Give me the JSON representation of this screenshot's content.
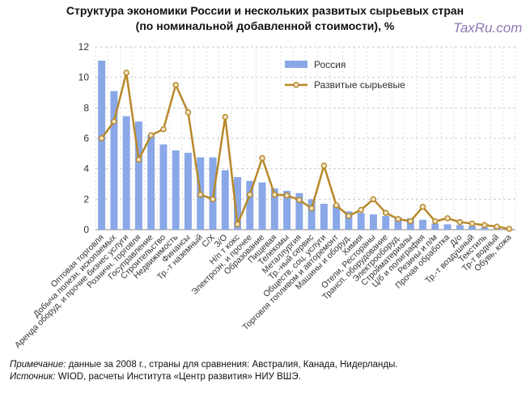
{
  "title_line1": "Структура экономики России и нескольких развитых сырьевых стран",
  "title_line2": "(по номинальной добавленной стоимости),  %",
  "watermark": "TaxRu.com",
  "notes": {
    "note_label": "Примечание:",
    "note_text": " данные за 2008 г., страны для сравнения: Австралия, Канада, Нидерланды.",
    "source_label": "Источник:",
    "source_text": " WIOD, расчеты Института «Центр развития» НИУ ВШЭ."
  },
  "chart_data": {
    "type": "bar+line",
    "title": "Структура экономики России и нескольких развитых сырьевых стран (по номинальной добавленной стоимости),  %",
    "ylim": [
      0,
      12
    ],
    "yticks": [
      0,
      2,
      4,
      6,
      8,
      10,
      12
    ],
    "grid": true,
    "legend_position": "top-center",
    "categories": [
      "Оптовая  торговля",
      "Добыча полезн. ископаемых",
      "Аренда оборуд. и прочие бизнес услуги",
      "Розничн. торговля",
      "Госуправление",
      "Строительство",
      "Недвижимость",
      "Финансы",
      "Тр.-т наземный",
      "С/Х",
      "З/О",
      "Н/п т кокс",
      "Электроэн. и прочее",
      "Образование",
      "Пищевая",
      "Телекомы",
      "Металлургия",
      "Тр.-ный сервис",
      "Обществ. соц. услуги",
      "Торговля топливом и авторемонт",
      "Машины  и оборуд.",
      "Химия",
      "Отели, Рестораны",
      "Трансп. оборудование",
      "Электрооборуд.",
      "Стройматериалы",
      "Ц/б и полиграфия",
      "Резины и п/м",
      "Прочая обработка",
      "Д/о",
      "Тр.-т воздушный",
      "Текстиль",
      "Тр-т водный",
      "Обувь, кожа"
    ],
    "series": [
      {
        "name": "Россия",
        "type": "bar",
        "color": "#8aa8e8",
        "values": [
          11.1,
          9.1,
          7.45,
          7.1,
          6.2,
          5.6,
          5.2,
          5.05,
          4.75,
          4.75,
          3.9,
          3.45,
          3.2,
          3.1,
          2.7,
          2.55,
          2.4,
          2.0,
          1.7,
          1.65,
          1.2,
          1.1,
          1.0,
          0.9,
          0.8,
          0.75,
          0.65,
          0.4,
          0.35,
          0.3,
          0.25,
          0.15,
          0.1,
          0.05
        ]
      },
      {
        "name": "Развитые сырьевые",
        "type": "line",
        "color": "#b8882a",
        "values": [
          6.0,
          7.1,
          10.3,
          4.6,
          6.2,
          6.6,
          9.5,
          7.7,
          2.3,
          2.0,
          7.4,
          0.35,
          2.3,
          4.7,
          2.3,
          2.25,
          1.95,
          1.4,
          4.2,
          1.6,
          0.9,
          1.3,
          2.0,
          1.1,
          0.7,
          0.55,
          1.5,
          0.55,
          0.75,
          0.5,
          0.4,
          0.3,
          0.2,
          0.05
        ]
      }
    ]
  }
}
